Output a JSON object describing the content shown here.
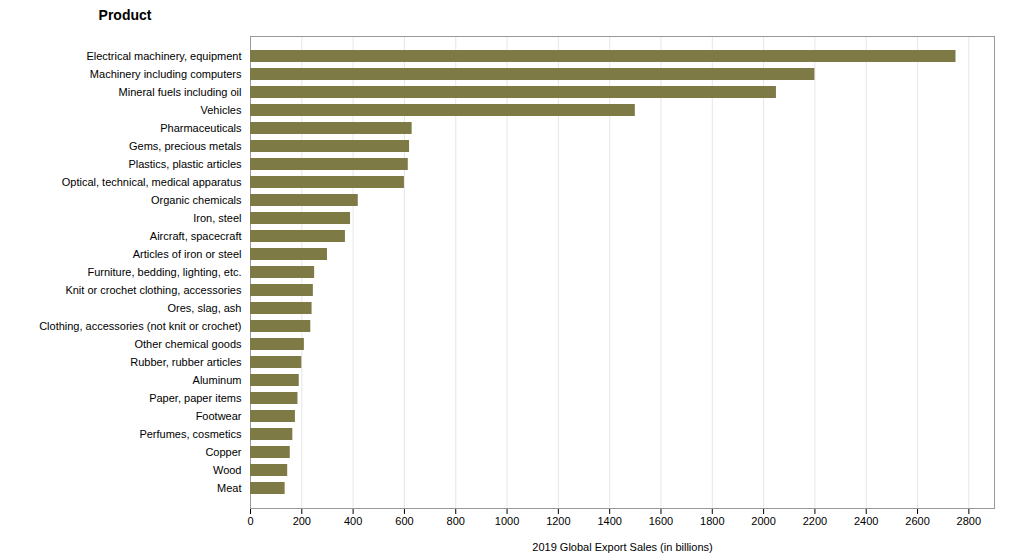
{
  "chart_data": {
    "type": "bar",
    "orientation": "horizontal",
    "title": "Product",
    "xlabel": "2019 Global Export Sales (in billions)",
    "categories": [
      "Electrical machinery, equipment",
      "Machinery including computers",
      "Mineral fuels including oil",
      "Vehicles",
      "Pharmaceuticals",
      "Gems, precious metals",
      "Plastics, plastic articles",
      "Optical, technical, medical apparatus",
      "Organic chemicals",
      "Iron, steel",
      "Aircraft, spacecraft",
      "Articles of iron or steel",
      "Furniture, bedding, lighting, etc.",
      "Knit or crochet clothing, accessories",
      "Ores, slag, ash",
      "Clothing, accessories (not knit or crochet)",
      "Other chemical goods",
      "Rubber, rubber articles",
      "Aluminum",
      "Paper, paper items",
      "Footwear",
      "Perfumes, cosmetics",
      "Copper",
      "Wood",
      "Meat"
    ],
    "values": [
      2750,
      2200,
      2050,
      1500,
      630,
      620,
      615,
      600,
      420,
      390,
      370,
      300,
      250,
      245,
      240,
      235,
      210,
      200,
      190,
      185,
      175,
      165,
      155,
      145,
      135
    ],
    "color": "#7d7a45",
    "xlim": [
      0,
      2900
    ],
    "xticks": [
      0,
      200,
      400,
      600,
      800,
      1000,
      1200,
      1400,
      1600,
      1800,
      2000,
      2200,
      2400,
      2600,
      2800
    ],
    "grid": true
  }
}
